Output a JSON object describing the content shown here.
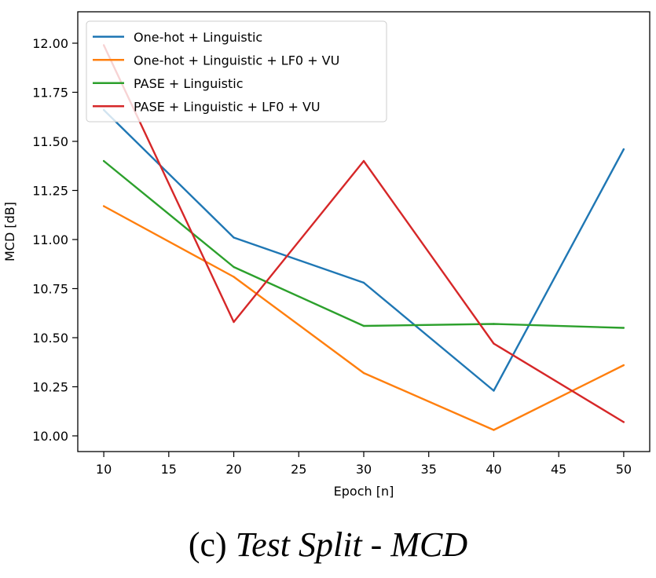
{
  "chart_data": {
    "type": "line",
    "xlabel": "Epoch [n]",
    "ylabel": "MCD [dB]",
    "xlim": [
      8,
      52
    ],
    "ylim": [
      9.92,
      12.16
    ],
    "x": [
      10,
      20,
      30,
      40,
      50
    ],
    "xticks": [
      10,
      15,
      20,
      25,
      30,
      35,
      40,
      45,
      50
    ],
    "xtick_labels": [
      "10",
      "15",
      "20",
      "25",
      "30",
      "35",
      "40",
      "45",
      "50"
    ],
    "yticks": [
      10.0,
      10.25,
      10.5,
      10.75,
      11.0,
      11.25,
      11.5,
      11.75,
      12.0
    ],
    "ytick_labels": [
      "10.00",
      "10.25",
      "10.50",
      "10.75",
      "11.00",
      "11.25",
      "11.50",
      "11.75",
      "12.00"
    ],
    "grid": false,
    "legend_position": "top-left",
    "series": [
      {
        "name": "One-hot + Linguistic",
        "color": "#1f77b4",
        "values": [
          11.66,
          11.01,
          10.78,
          10.23,
          11.46
        ]
      },
      {
        "name": "One-hot + Linguistic + LF0 + VU",
        "color": "#ff7f0e",
        "values": [
          11.17,
          10.81,
          10.32,
          10.03,
          10.36
        ]
      },
      {
        "name": "PASE + Linguistic",
        "color": "#2ca02c",
        "values": [
          11.4,
          10.86,
          10.56,
          10.57,
          10.55
        ]
      },
      {
        "name": "PASE + Linguistic + LF0 + VU",
        "color": "#d62728",
        "values": [
          11.99,
          10.58,
          11.4,
          10.47,
          10.07
        ]
      }
    ]
  },
  "caption": {
    "label": "(c)",
    "title": "Test Split - MCD"
  }
}
